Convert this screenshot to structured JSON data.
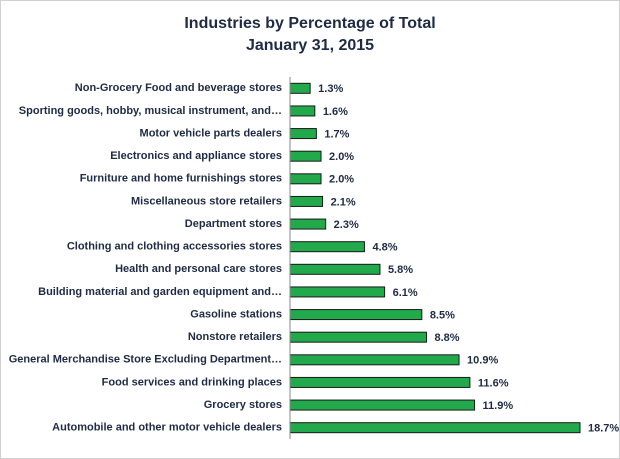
{
  "chart_data": {
    "type": "bar",
    "orientation": "horizontal",
    "title": "Industries by Percentage of Total",
    "subtitle": "January 31, 2015",
    "categories": [
      "Non-Grocery Food and beverage stores",
      "Sporting goods, hobby, musical instrument, and…",
      "Motor vehicle parts dealers",
      "Electronics and appliance stores",
      "Furniture and home furnishings stores",
      "Miscellaneous store retailers",
      "Department stores",
      "Clothing and clothing accessories stores",
      "Health and personal care stores",
      "Building material and garden equipment and…",
      "Gasoline stations",
      "Nonstore retailers",
      "General Merchandise Store Excluding Department…",
      "Food services and drinking places",
      "Grocery stores",
      "Automobile and other motor vehicle dealers"
    ],
    "values": [
      1.3,
      1.6,
      1.7,
      2.0,
      2.0,
      2.1,
      2.3,
      4.8,
      5.8,
      6.1,
      8.5,
      8.8,
      10.9,
      11.6,
      11.9,
      18.7
    ],
    "value_labels": [
      "1.3%",
      "1.6%",
      "1.7%",
      "2.0%",
      "2.0%",
      "2.1%",
      "2.3%",
      "4.8%",
      "5.8%",
      "6.1%",
      "8.5%",
      "8.8%",
      "10.9%",
      "11.6%",
      "11.9%",
      "18.7%"
    ],
    "color": "#21a94b"
  }
}
